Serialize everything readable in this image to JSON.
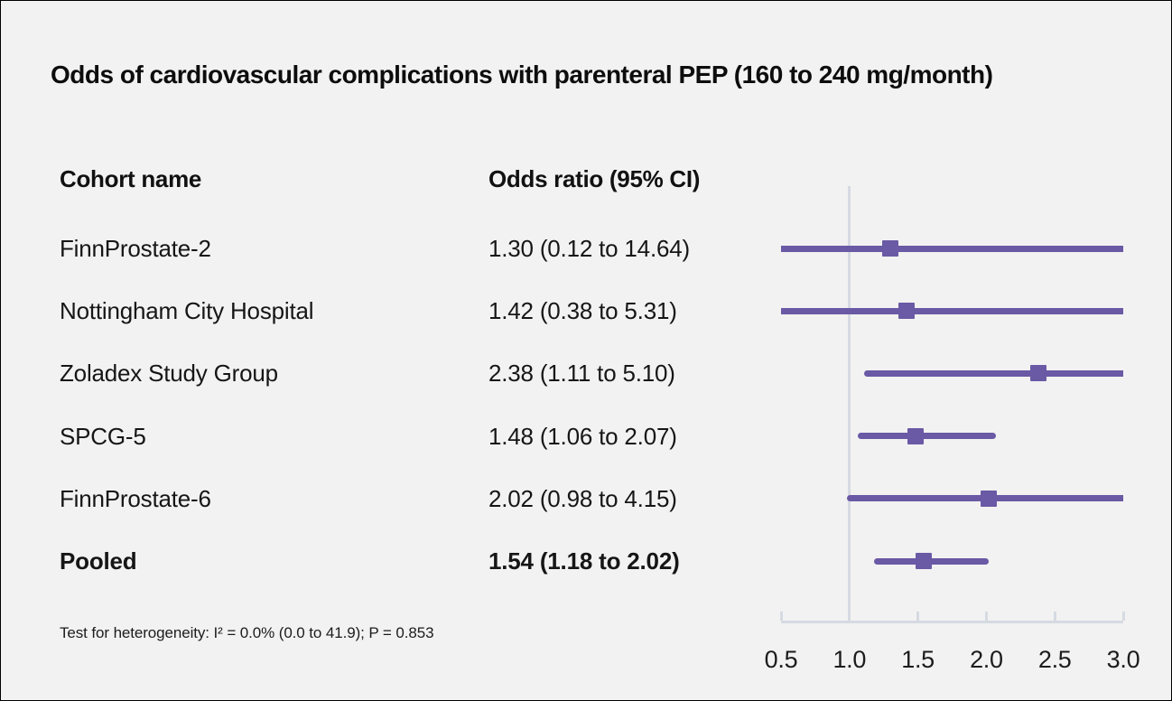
{
  "title": "Odds of cardiovascular complications with parenteral PEP (160 to 240 mg/month)",
  "columns": {
    "cohort": "Cohort name",
    "odds_ratio": "Odds ratio (95% CI)"
  },
  "footnote": "Test for heterogeneity: I² = 0.0% (0.0 to 41.9); P = 0.853",
  "colors": {
    "background": "#f2f2f2",
    "marker_purple": "#6a59a5",
    "axis_gray": "#d6dae2",
    "text": "#161616"
  },
  "chart_data": {
    "type": "forest",
    "title": "Odds of cardiovascular complications with parenteral PEP (160 to 240 mg/month)",
    "xlabel": "",
    "ylabel": "",
    "xlim": [
      0.5,
      3.0
    ],
    "x_ticks": [
      "0.5",
      "1.0",
      "1.5",
      "2.0",
      "2.5",
      "3.0"
    ],
    "x_tick_values": [
      0.5,
      1.0,
      1.5,
      2.0,
      2.5,
      3.0
    ],
    "reference_line": 1.0,
    "grid": false,
    "legend": "none",
    "rows": [
      {
        "label": "FinnProstate-2",
        "display": "1.30 (0.12 to 14.64)",
        "or": 1.3,
        "ci_low": 0.12,
        "ci_high": 14.64,
        "bold": false
      },
      {
        "label": "Nottingham City Hospital",
        "display": "1.42 (0.38 to 5.31)",
        "or": 1.42,
        "ci_low": 0.38,
        "ci_high": 5.31,
        "bold": false
      },
      {
        "label": "Zoladex Study Group",
        "display": "2.38 (1.11 to 5.10)",
        "or": 2.38,
        "ci_low": 1.11,
        "ci_high": 5.1,
        "bold": false
      },
      {
        "label": "SPCG-5",
        "display": "1.48 (1.06 to 2.07)",
        "or": 1.48,
        "ci_low": 1.06,
        "ci_high": 2.07,
        "bold": false
      },
      {
        "label": "FinnProstate-6",
        "display": "2.02 (0.98 to 4.15)",
        "or": 2.02,
        "ci_low": 0.98,
        "ci_high": 4.15,
        "bold": false
      },
      {
        "label": "Pooled",
        "display": "1.54 (1.18 to 2.02)",
        "or": 1.54,
        "ci_low": 1.18,
        "ci_high": 2.02,
        "bold": true
      }
    ]
  }
}
